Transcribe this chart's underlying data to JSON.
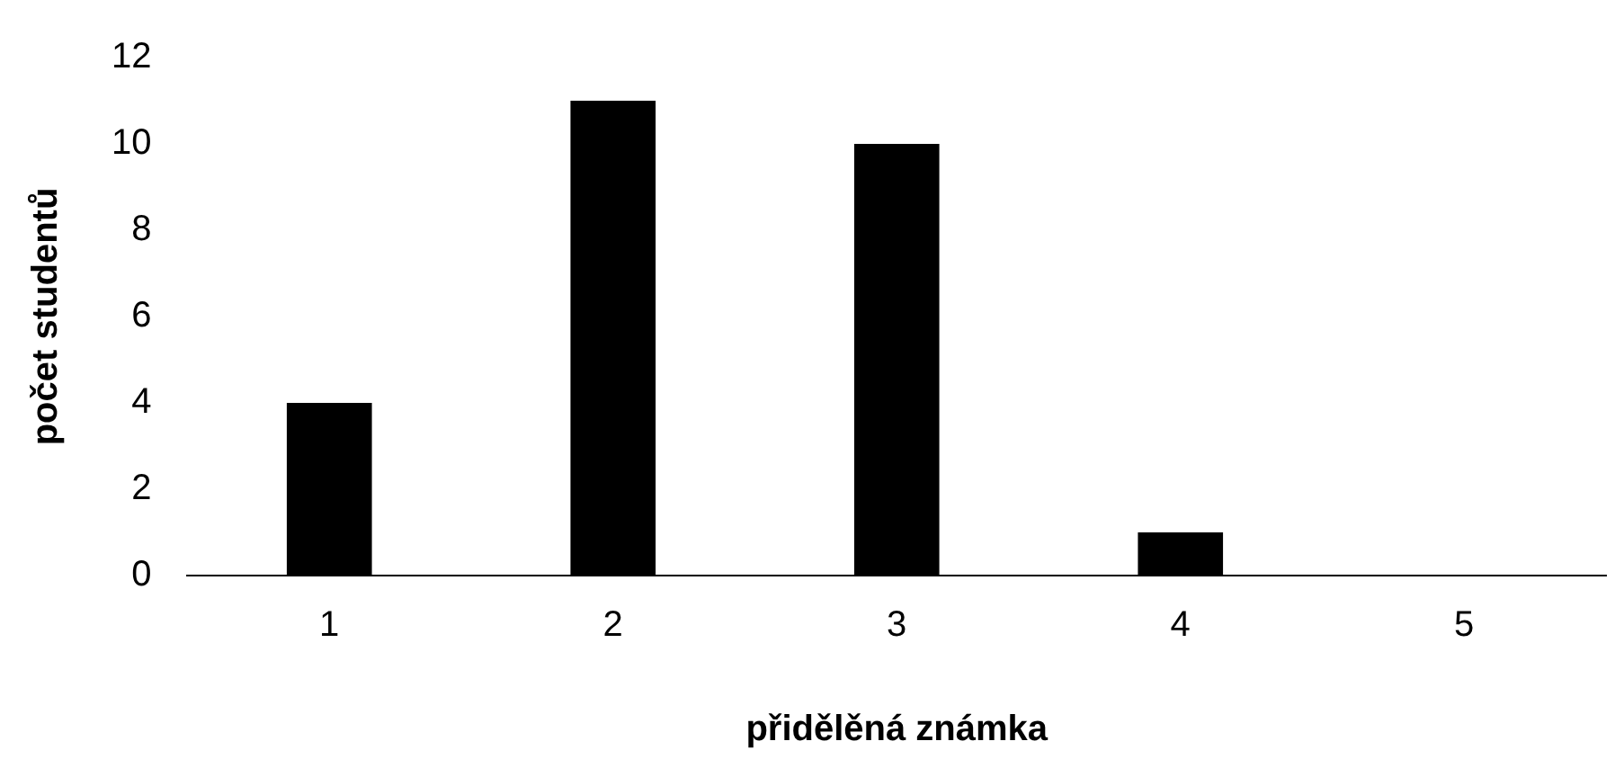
{
  "chart_data": {
    "type": "bar",
    "xlabel": "přidělěná známka",
    "ylabel": "počet studentů",
    "categories": [
      "1",
      "2",
      "3",
      "4",
      "5"
    ],
    "values": [
      4,
      11,
      10,
      1,
      0
    ],
    "color": "#000000",
    "ylim": [
      0,
      12
    ],
    "yticks": [
      0,
      2,
      4,
      6,
      8,
      10,
      12
    ],
    "grid": false,
    "legend": false
  }
}
